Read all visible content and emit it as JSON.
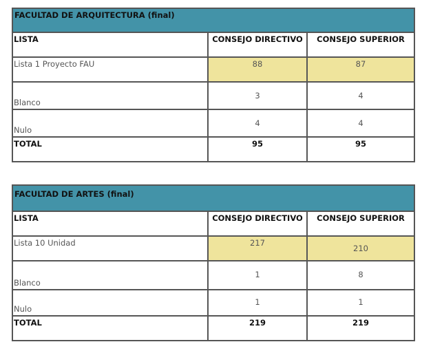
{
  "tables": [
    {
      "title": "FACULTAD DE ARQUITECTURA (final)",
      "headers": [
        "LISTA",
        "CONSEJO DIRECTIVO",
        "CONSEJO SUPERIOR"
      ],
      "rows": [
        [
          "Lista 1 Proyecto FAU",
          "88",
          "87"
        ],
        [
          "Blanco",
          "3",
          "4"
        ],
        [
          "Nulo",
          "4",
          "4"
        ]
      ],
      "total": [
        "TOTAL",
        "95",
        "95"
      ]
    },
    {
      "title": "FACULTAD DE ARTES (final)",
      "headers": [
        "LISTA",
        "CONSEJO DIRECTIVO",
        "CONSEJO SUPERIOR"
      ],
      "rows": [
        [
          "Lista 10 Unidad",
          "217",
          "210"
        ],
        [
          "Blanco",
          "1",
          "8"
        ],
        [
          "Nulo",
          "1",
          "1"
        ]
      ],
      "total": [
        "TOTAL",
        "219",
        "219"
      ]
    }
  ],
  "colors": {
    "header": "#4393a8",
    "highlight": "#efe49c"
  }
}
